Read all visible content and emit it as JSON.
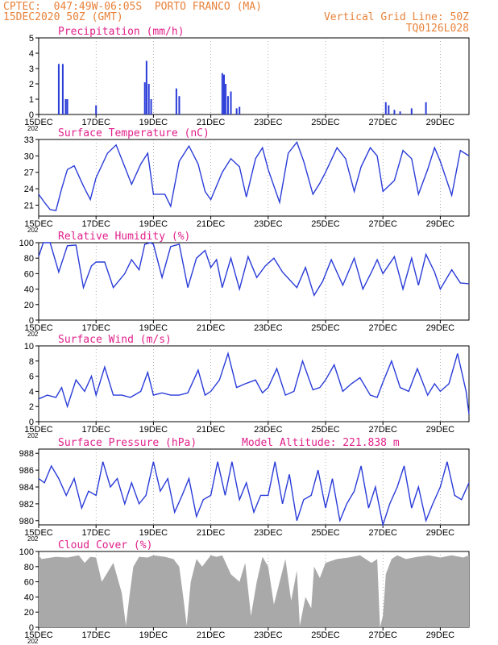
{
  "header": {
    "line1_left": "CPTEC:  047:49W-06:05S  PORTO FRANCO (MA)",
    "line2_left": "15DEC2020 50Z (GMT)",
    "line2_right": "Vertical Grid Line: 50Z",
    "line3_right": "TQ0126L028"
  },
  "colors": {
    "header": "#e8823a",
    "title": "#e0208a",
    "series": "#2a3cd8",
    "bars": "#2a3cd8",
    "cloud": "#a9a9a9",
    "axis": "#000000",
    "grid": "#7a7a7a"
  },
  "x_ticks": [
    "15DEC",
    "17DEC",
    "19DEC",
    "21DEC",
    "23DEC",
    "25DEC",
    "27DEC",
    "29DEC"
  ],
  "x_ticks_year": "202",
  "chart_data": [
    {
      "type": "bar",
      "title": "Precipitation (mm/h)",
      "ylim": [
        0,
        5
      ],
      "yticks": [
        0,
        1,
        2,
        3,
        4,
        5
      ],
      "x": [
        0.35,
        0.42,
        0.47,
        0.5,
        1.0,
        1.85,
        1.88,
        1.92,
        1.96,
        2.4,
        2.45,
        3.2,
        3.23,
        3.26,
        3.3,
        3.35,
        3.45,
        3.5,
        6.05,
        6.1,
        6.2,
        6.3,
        6.5,
        6.75
      ],
      "values": [
        3.3,
        3.3,
        1.0,
        1.0,
        0.6,
        2.1,
        3.5,
        2.0,
        1.0,
        1.7,
        1.2,
        2.7,
        2.6,
        2.0,
        1.2,
        1.5,
        0.4,
        0.5,
        0.8,
        0.6,
        0.3,
        0.2,
        0.4,
        0.8
      ]
    },
    {
      "type": "line",
      "title": "Surface Temperature (nC)",
      "ylim": [
        19,
        33
      ],
      "yticks": [
        21,
        24,
        27,
        30,
        33
      ],
      "x": [
        0,
        0.1,
        0.2,
        0.3,
        0.4,
        0.5,
        0.62,
        0.78,
        0.9,
        1.0,
        1.2,
        1.35,
        1.5,
        1.62,
        1.78,
        1.9,
        2.0,
        2.2,
        2.3,
        2.45,
        2.62,
        2.78,
        2.9,
        3.0,
        3.2,
        3.35,
        3.5,
        3.62,
        3.78,
        3.9,
        4.0,
        4.2,
        4.35,
        4.5,
        4.62,
        4.78,
        4.9,
        5.0,
        5.2,
        5.35,
        5.5,
        5.62,
        5.78,
        5.9,
        6.0,
        6.2,
        6.35,
        6.5,
        6.62,
        6.78,
        6.9,
        7.0,
        7.2,
        7.35,
        7.5
      ],
      "y": [
        23,
        21.5,
        20.2,
        20,
        24,
        27.5,
        28.2,
        24.5,
        22,
        26,
        30.5,
        32,
        28,
        24.8,
        28.5,
        30.5,
        23,
        23,
        20.8,
        29,
        31.8,
        28.5,
        23.5,
        22,
        27,
        29.5,
        28,
        22.5,
        29.5,
        31.5,
        27.5,
        21.5,
        30.5,
        32.5,
        29,
        23,
        25,
        27,
        31.5,
        29.5,
        23.5,
        28,
        31.5,
        30,
        23.5,
        25.5,
        31,
        29.5,
        23,
        27.5,
        31.5,
        29,
        22.8,
        31,
        30
      ]
    },
    {
      "type": "line",
      "title": "Relative Humidity (%)",
      "ylim": [
        0,
        100
      ],
      "yticks": [
        0,
        20,
        40,
        60,
        80,
        100
      ],
      "x": [
        0,
        0.08,
        0.2,
        0.35,
        0.5,
        0.65,
        0.78,
        0.92,
        1.0,
        1.15,
        1.3,
        1.5,
        1.62,
        1.75,
        1.85,
        1.95,
        2.0,
        2.15,
        2.3,
        2.45,
        2.6,
        2.75,
        2.9,
        3.0,
        3.1,
        3.2,
        3.35,
        3.5,
        3.65,
        3.8,
        3.95,
        4.1,
        4.25,
        4.5,
        4.65,
        4.8,
        4.95,
        5.1,
        5.3,
        5.5,
        5.65,
        5.8,
        5.9,
        6.0,
        6.2,
        6.35,
        6.5,
        6.62,
        6.75,
        6.9,
        7.0,
        7.2,
        7.35,
        7.5
      ],
      "y": [
        82,
        100,
        100,
        62,
        96,
        97,
        42,
        70,
        75,
        75,
        42,
        60,
        78,
        65,
        98,
        100,
        98,
        55,
        95,
        98,
        42,
        80,
        90,
        68,
        78,
        42,
        80,
        40,
        82,
        55,
        70,
        80,
        62,
        42,
        68,
        32,
        50,
        78,
        45,
        80,
        40,
        62,
        78,
        60,
        82,
        40,
        80,
        45,
        85,
        62,
        40,
        65,
        48,
        47
      ]
    },
    {
      "type": "line",
      "title": "Surface Wind (m/s)",
      "ylim": [
        0,
        10
      ],
      "yticks": [
        0,
        2,
        4,
        6,
        8,
        10
      ],
      "x": [
        0,
        0.15,
        0.3,
        0.4,
        0.5,
        0.65,
        0.8,
        0.92,
        1.0,
        1.15,
        1.3,
        1.45,
        1.6,
        1.78,
        1.9,
        2.0,
        2.15,
        2.3,
        2.45,
        2.6,
        2.78,
        2.9,
        3.0,
        3.15,
        3.3,
        3.45,
        3.6,
        3.78,
        3.9,
        4.0,
        4.15,
        4.3,
        4.45,
        4.6,
        4.78,
        4.9,
        5.0,
        5.15,
        5.3,
        5.45,
        5.6,
        5.78,
        5.9,
        6.0,
        6.15,
        6.3,
        6.45,
        6.6,
        6.78,
        6.9,
        7.0,
        7.15,
        7.3,
        7.45,
        7.5
      ],
      "y": [
        3,
        3.5,
        3.2,
        4.5,
        2,
        5.5,
        4,
        6,
        3.5,
        7.2,
        3.5,
        3.5,
        3.2,
        4,
        6.5,
        3.5,
        3.8,
        3.5,
        3.5,
        3.8,
        6.8,
        3.5,
        4,
        5.5,
        9,
        4.5,
        5,
        5.5,
        3.8,
        4.5,
        7,
        3.5,
        4,
        8,
        4.2,
        4.5,
        5.5,
        7.5,
        4,
        5,
        5.8,
        3.5,
        3.2,
        5.2,
        8,
        4.5,
        4,
        7,
        3.5,
        5,
        4,
        5,
        9,
        4,
        1
      ]
    },
    {
      "type": "line",
      "title": "Surface Pressure (hPa)",
      "annotation": "Model Altitude: 221.838 m",
      "ylim": [
        979.5,
        988.5
      ],
      "yticks": [
        980,
        982,
        984,
        986,
        988
      ],
      "x": [
        0,
        0.1,
        0.22,
        0.35,
        0.48,
        0.62,
        0.75,
        0.87,
        1.0,
        1.12,
        1.25,
        1.37,
        1.5,
        1.62,
        1.75,
        1.87,
        2.0,
        2.12,
        2.25,
        2.37,
        2.5,
        2.62,
        2.75,
        2.87,
        3.0,
        3.12,
        3.25,
        3.37,
        3.5,
        3.62,
        3.75,
        3.87,
        4.0,
        4.12,
        4.25,
        4.37,
        4.5,
        4.62,
        4.75,
        4.87,
        5.0,
        5.12,
        5.25,
        5.37,
        5.5,
        5.62,
        5.75,
        5.87,
        6.0,
        6.12,
        6.25,
        6.37,
        6.5,
        6.62,
        6.75,
        6.87,
        7.0,
        7.12,
        7.25,
        7.37,
        7.5
      ],
      "y": [
        985,
        984.5,
        986.5,
        985,
        983,
        985,
        981.5,
        983.5,
        983,
        987,
        984,
        985,
        982,
        984.5,
        982,
        983,
        987,
        983.5,
        985,
        981,
        983,
        985,
        980.5,
        982.5,
        983,
        987,
        983,
        987,
        982.5,
        984.5,
        981,
        983,
        983,
        987,
        982,
        985.5,
        980,
        982.5,
        983,
        986,
        981.5,
        985,
        980,
        982,
        983.5,
        986.5,
        981.5,
        984,
        979.5,
        982,
        984,
        986.5,
        981.5,
        984,
        980,
        982,
        984,
        987,
        983,
        982.5,
        984.5
      ]
    },
    {
      "type": "area",
      "title": "Cloud Cover (%)",
      "ylim": [
        0,
        100
      ],
      "yticks": [
        0,
        20,
        40,
        60,
        80,
        100
      ],
      "x": [
        0,
        0.05,
        0.3,
        0.5,
        0.7,
        0.8,
        0.9,
        1.0,
        1.1,
        1.3,
        1.45,
        1.52,
        1.58,
        1.65,
        1.75,
        1.9,
        2.0,
        2.2,
        2.35,
        2.45,
        2.52,
        2.58,
        2.65,
        2.75,
        2.85,
        3.0,
        3.1,
        3.2,
        3.35,
        3.5,
        3.6,
        3.7,
        3.8,
        3.9,
        4.0,
        4.1,
        4.2,
        4.3,
        4.4,
        4.5,
        4.55,
        4.65,
        4.75,
        4.8,
        4.9,
        5.0,
        5.2,
        5.4,
        5.6,
        5.8,
        5.9,
        5.95,
        6.0,
        6.05,
        6.15,
        6.25,
        6.4,
        6.6,
        6.8,
        7.0,
        7.2,
        7.4,
        7.5
      ],
      "y": [
        95,
        90,
        93,
        92,
        95,
        85,
        93,
        92,
        60,
        85,
        45,
        2,
        40,
        80,
        93,
        92,
        95,
        93,
        90,
        80,
        40,
        2,
        60,
        90,
        80,
        95,
        93,
        95,
        70,
        60,
        85,
        15,
        60,
        93,
        80,
        30,
        60,
        90,
        35,
        75,
        2,
        40,
        25,
        80,
        65,
        85,
        90,
        92,
        95,
        85,
        90,
        0,
        15,
        70,
        90,
        95,
        90,
        93,
        95,
        92,
        95,
        92,
        95
      ]
    }
  ]
}
